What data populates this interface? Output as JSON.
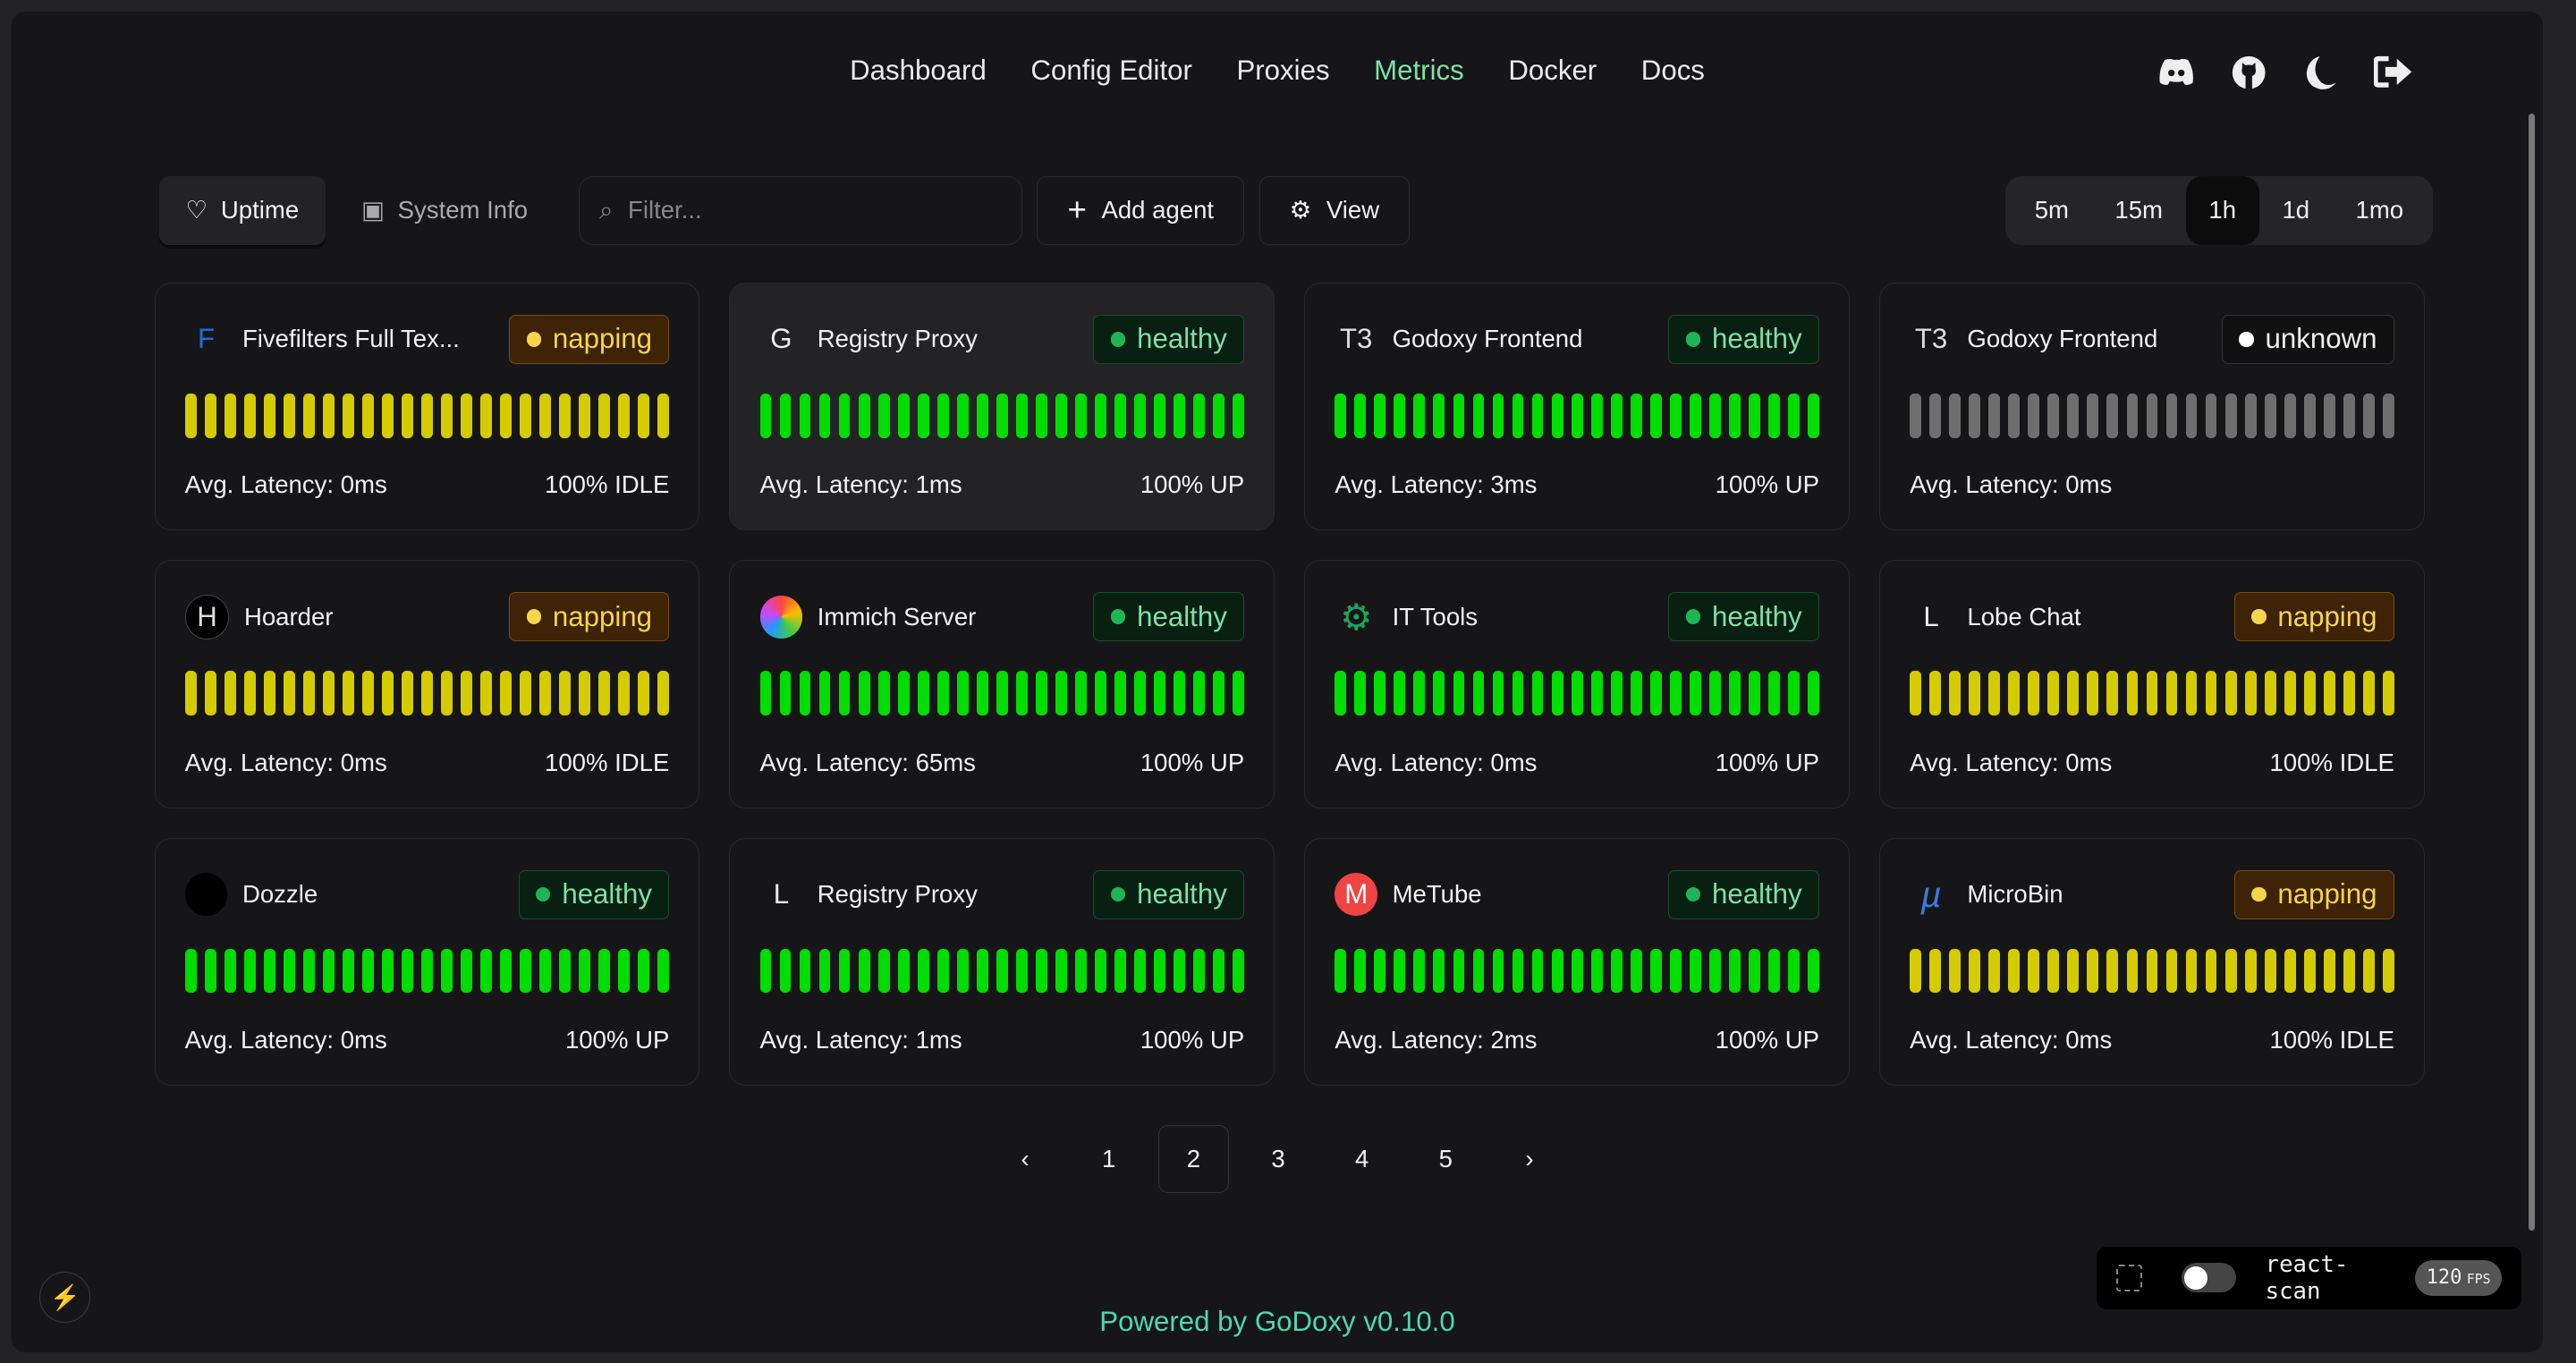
{
  "nav": {
    "items": [
      "Dashboard",
      "Config Editor",
      "Proxies",
      "Metrics",
      "Docker",
      "Docs"
    ],
    "active": "Metrics"
  },
  "header_icons": [
    "discord-icon",
    "github-icon",
    "moon-icon",
    "logout-icon"
  ],
  "toolbar": {
    "tabs": [
      {
        "label": "Uptime",
        "icon": "heart-pulse-icon",
        "selected": true
      },
      {
        "label": "System Info",
        "icon": "cpu-icon",
        "selected": false
      }
    ],
    "filter_placeholder": "Filter...",
    "add_agent": "Add agent",
    "view": "View"
  },
  "ranges": {
    "options": [
      "5m",
      "15m",
      "1h",
      "1d",
      "1mo"
    ],
    "selected": "1h"
  },
  "colors": {
    "healthy_bar": "#00dd00",
    "napping_bar": "#d4cc00",
    "unknown_bar": "#6e6e6e",
    "accent": "#7ee0a8"
  },
  "cards": [
    {
      "name": "Fivefilters Full Tex...",
      "icon": "F",
      "status": "napping",
      "latency": "Avg. Latency: 0ms",
      "uptime": "100% IDLE"
    },
    {
      "name": "Registry Proxy",
      "icon": "G",
      "status": "healthy",
      "latency": "Avg. Latency: 1ms",
      "uptime": "100% UP"
    },
    {
      "name": "Godoxy Frontend",
      "icon": "T3",
      "status": "healthy",
      "latency": "Avg. Latency: 3ms",
      "uptime": "100% UP"
    },
    {
      "name": "Godoxy Frontend",
      "icon": "T3",
      "status": "unknown",
      "latency": "Avg. Latency: 0ms",
      "uptime": ""
    },
    {
      "name": "Hoarder",
      "icon": "H",
      "status": "napping",
      "latency": "Avg. Latency: 0ms",
      "uptime": "100% IDLE"
    },
    {
      "name": "Immich Server",
      "icon": "I",
      "status": "healthy",
      "latency": "Avg. Latency: 65ms",
      "uptime": "100% UP"
    },
    {
      "name": "IT Tools",
      "icon": "⚙",
      "status": "healthy",
      "latency": "Avg. Latency: 0ms",
      "uptime": "100% UP"
    },
    {
      "name": "Lobe Chat",
      "icon": "L",
      "status": "napping",
      "latency": "Avg. Latency: 0ms",
      "uptime": "100% IDLE"
    },
    {
      "name": "Dozzle",
      "icon": "D",
      "status": "healthy",
      "latency": "Avg. Latency: 0ms",
      "uptime": "100% UP"
    },
    {
      "name": "Registry Proxy",
      "icon": "L",
      "status": "healthy",
      "latency": "Avg. Latency: 1ms",
      "uptime": "100% UP"
    },
    {
      "name": "MeTube",
      "icon": "M",
      "status": "healthy",
      "latency": "Avg. Latency: 2ms",
      "uptime": "100% UP"
    },
    {
      "name": "MicroBin",
      "icon": "µ",
      "status": "napping",
      "latency": "Avg. Latency: 0ms",
      "uptime": "100% IDLE"
    }
  ],
  "pagination": {
    "pages": [
      "1",
      "2",
      "3",
      "4",
      "5"
    ],
    "current": "2",
    "prev": "‹",
    "next": "›"
  },
  "footer": {
    "prefix": "Powered by",
    "brand": "GoDoxy",
    "version": "v0.10.0"
  },
  "react_scan": {
    "label": "react-scan",
    "fps": "120",
    "fps_unit": "FPS",
    "enabled": false
  }
}
